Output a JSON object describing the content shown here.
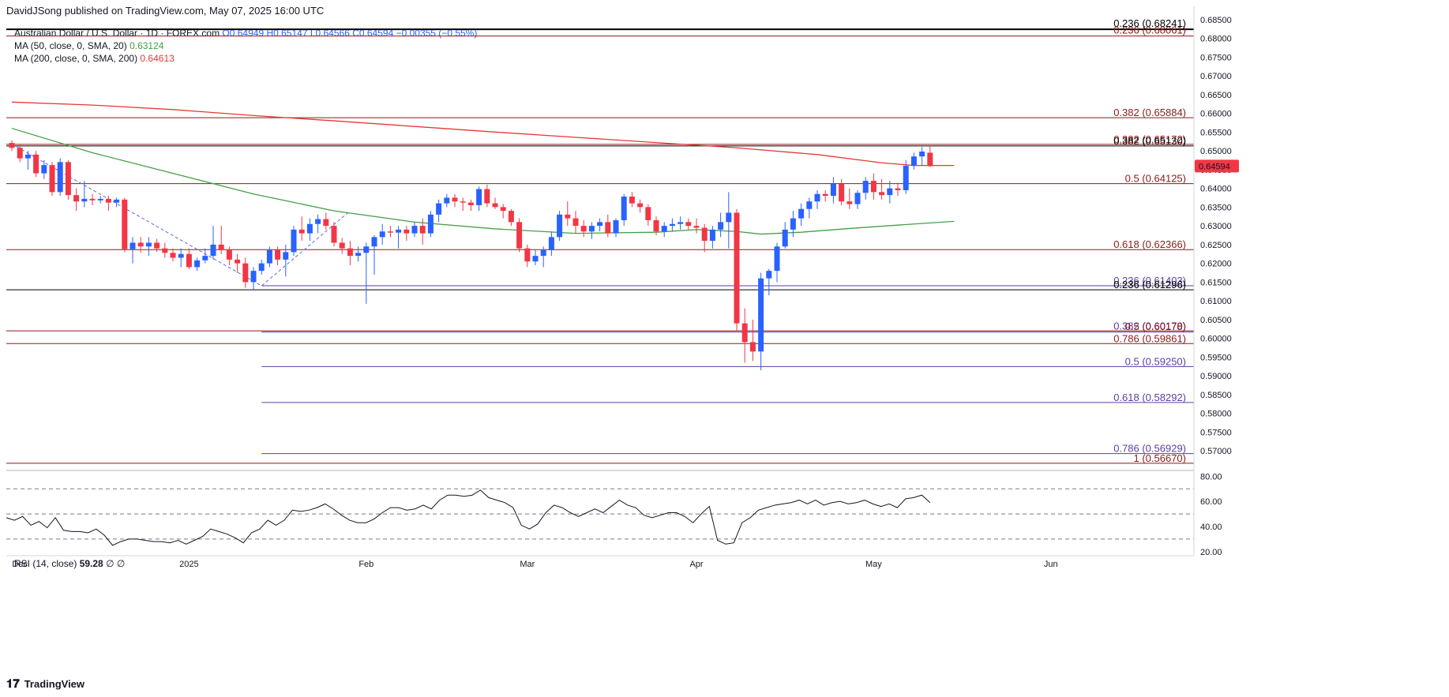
{
  "header": {
    "publisher": "DavidJSong published on TradingView.com, May 07, 2025 16:00 UTC"
  },
  "legend": {
    "symbol": "Australian Dollar / U.S. Dollar · 1D · FOREX.com",
    "ohlc": "O0.64949 H0.65147 L0.64566 C0.64594 −0.00355 (−0.55%)",
    "ma50_label": "MA (50, close, 0, SMA, 20)",
    "ma50_value": "0.63124",
    "ma200_label": "MA (200, close, 0, SMA, 200)",
    "ma200_value": "0.64613"
  },
  "rsi_legend": {
    "label": "RSI (14, close)",
    "value": "59.28",
    "extra": "∅ ∅"
  },
  "footer": {
    "brand": "TradingView",
    "logo": "tv-logo-icon"
  },
  "colors": {
    "up": "#2962ff",
    "down": "#f23645",
    "ma50": "#43a047",
    "ma200": "#e53935",
    "fib_red": "#8b1a1a",
    "fib_purple": "#5b3fa0",
    "grid": "#e0e3eb",
    "last_price_bg": "#f23645"
  },
  "chart_data": [
    {
      "type": "candlestick",
      "title": "Australian Dollar / U.S. Dollar · 1D · FOREX.com",
      "ylim": [
        0.565,
        0.686
      ],
      "y_ticks": [
        "0.68500",
        "0.68000",
        "0.67500",
        "0.67000",
        "0.66500",
        "0.66000",
        "0.65500",
        "0.65000",
        "0.64500",
        "0.64000",
        "0.63500",
        "0.63000",
        "0.62500",
        "0.62000",
        "0.61500",
        "0.61000",
        "0.60500",
        "0.60000",
        "0.59500",
        "0.59000",
        "0.58500",
        "0.58000",
        "0.57500",
        "0.57000"
      ],
      "x_ticks": [
        {
          "label": "Dec",
          "index": 1
        },
        {
          "label": "2025",
          "index": 22
        },
        {
          "label": "Feb",
          "index": 44
        },
        {
          "label": "Mar",
          "index": 64
        },
        {
          "label": "Apr",
          "index": 85
        },
        {
          "label": "May",
          "index": 107
        },
        {
          "label": "Jun",
          "index": 129
        }
      ],
      "last_price": "0.64594",
      "candles": [
        [
          0.6521,
          0.6528,
          0.65,
          0.6508
        ],
        [
          0.6508,
          0.6519,
          0.647,
          0.648
        ],
        [
          0.648,
          0.65,
          0.645,
          0.649
        ],
        [
          0.649,
          0.65,
          0.643,
          0.644
        ],
        [
          0.644,
          0.6475,
          0.6425,
          0.6462
        ],
        [
          0.6462,
          0.647,
          0.638,
          0.639
        ],
        [
          0.639,
          0.648,
          0.638,
          0.647
        ],
        [
          0.647,
          0.6475,
          0.637,
          0.6382
        ],
        [
          0.6382,
          0.64,
          0.634,
          0.6365
        ],
        [
          0.6365,
          0.642,
          0.635,
          0.6372
        ],
        [
          0.6372,
          0.6385,
          0.6355,
          0.6368
        ],
        [
          0.6368,
          0.638,
          0.636,
          0.6372
        ],
        [
          0.6372,
          0.638,
          0.634,
          0.6362
        ],
        [
          0.6362,
          0.6375,
          0.635,
          0.637
        ],
        [
          0.637,
          0.6375,
          0.623,
          0.6238
        ],
        [
          0.6238,
          0.627,
          0.62,
          0.6255
        ],
        [
          0.6255,
          0.627,
          0.6228,
          0.6245
        ],
        [
          0.6245,
          0.627,
          0.622,
          0.6255
        ],
        [
          0.6255,
          0.6265,
          0.623,
          0.624
        ],
        [
          0.624,
          0.6255,
          0.6215,
          0.6228
        ],
        [
          0.6228,
          0.624,
          0.6205,
          0.6215
        ],
        [
          0.6215,
          0.624,
          0.619,
          0.6225
        ],
        [
          0.6225,
          0.624,
          0.6185,
          0.619
        ],
        [
          0.619,
          0.6215,
          0.618,
          0.6208
        ],
        [
          0.6208,
          0.624,
          0.62,
          0.622
        ],
        [
          0.622,
          0.63,
          0.621,
          0.625
        ],
        [
          0.625,
          0.63,
          0.6225,
          0.6235
        ],
        [
          0.6235,
          0.6245,
          0.6195,
          0.621
        ],
        [
          0.621,
          0.6225,
          0.6175,
          0.62
        ],
        [
          0.62,
          0.6215,
          0.6135,
          0.615
        ],
        [
          0.615,
          0.619,
          0.613,
          0.618
        ],
        [
          0.618,
          0.621,
          0.617,
          0.62
        ],
        [
          0.62,
          0.6245,
          0.619,
          0.6235
        ],
        [
          0.6235,
          0.6245,
          0.6195,
          0.621
        ],
        [
          0.621,
          0.625,
          0.6165,
          0.623
        ],
        [
          0.623,
          0.63,
          0.622,
          0.629
        ],
        [
          0.629,
          0.6325,
          0.626,
          0.628
        ],
        [
          0.628,
          0.632,
          0.626,
          0.6305
        ],
        [
          0.6305,
          0.633,
          0.628,
          0.6318
        ],
        [
          0.6318,
          0.6335,
          0.629,
          0.63
        ],
        [
          0.63,
          0.631,
          0.6245,
          0.6255
        ],
        [
          0.6255,
          0.6268,
          0.6225,
          0.624
        ],
        [
          0.624,
          0.626,
          0.6195,
          0.622
        ],
        [
          0.622,
          0.6245,
          0.6205,
          0.6228
        ],
        [
          0.6228,
          0.6255,
          0.6092,
          0.6245
        ],
        [
          0.6245,
          0.6275,
          0.617,
          0.627
        ],
        [
          0.627,
          0.6305,
          0.625,
          0.6285
        ],
        [
          0.6285,
          0.63,
          0.627,
          0.6282
        ],
        [
          0.6282,
          0.63,
          0.624,
          0.629
        ],
        [
          0.629,
          0.63,
          0.626,
          0.628
        ],
        [
          0.628,
          0.631,
          0.627,
          0.63
        ],
        [
          0.63,
          0.632,
          0.625,
          0.628
        ],
        [
          0.628,
          0.634,
          0.627,
          0.633
        ],
        [
          0.633,
          0.637,
          0.631,
          0.636
        ],
        [
          0.636,
          0.6385,
          0.635,
          0.6375
        ],
        [
          0.6375,
          0.6385,
          0.635,
          0.6365
        ],
        [
          0.6365,
          0.6375,
          0.634,
          0.6362
        ],
        [
          0.6362,
          0.637,
          0.634,
          0.6355
        ],
        [
          0.6355,
          0.6405,
          0.634,
          0.6398
        ],
        [
          0.6398,
          0.641,
          0.635,
          0.636
        ],
        [
          0.636,
          0.6375,
          0.6345,
          0.635
        ],
        [
          0.635,
          0.6358,
          0.632,
          0.634
        ],
        [
          0.634,
          0.6345,
          0.63,
          0.631
        ],
        [
          0.631,
          0.632,
          0.623,
          0.624
        ],
        [
          0.624,
          0.625,
          0.619,
          0.6205
        ],
        [
          0.6205,
          0.6235,
          0.6195,
          0.622
        ],
        [
          0.622,
          0.6245,
          0.619,
          0.6235
        ],
        [
          0.6235,
          0.6285,
          0.622,
          0.627
        ],
        [
          0.627,
          0.634,
          0.626,
          0.633
        ],
        [
          0.633,
          0.6365,
          0.63,
          0.632
        ],
        [
          0.632,
          0.634,
          0.628,
          0.63
        ],
        [
          0.63,
          0.6315,
          0.627,
          0.6285
        ],
        [
          0.6285,
          0.631,
          0.6265,
          0.63
        ],
        [
          0.63,
          0.632,
          0.6285,
          0.631
        ],
        [
          0.631,
          0.633,
          0.627,
          0.628
        ],
        [
          0.628,
          0.632,
          0.627,
          0.6315
        ],
        [
          0.6315,
          0.6385,
          0.63,
          0.6378
        ],
        [
          0.6378,
          0.639,
          0.635,
          0.636
        ],
        [
          0.636,
          0.637,
          0.6335,
          0.635
        ],
        [
          0.635,
          0.6358,
          0.63,
          0.6315
        ],
        [
          0.6315,
          0.6325,
          0.6275,
          0.6285
        ],
        [
          0.6285,
          0.631,
          0.627,
          0.63
        ],
        [
          0.63,
          0.632,
          0.6285,
          0.6305
        ],
        [
          0.6305,
          0.6325,
          0.629,
          0.631
        ],
        [
          0.631,
          0.632,
          0.629,
          0.63
        ],
        [
          0.63,
          0.632,
          0.628,
          0.6295
        ],
        [
          0.6295,
          0.6305,
          0.623,
          0.626
        ],
        [
          0.626,
          0.63,
          0.624,
          0.629
        ],
        [
          0.629,
          0.6335,
          0.627,
          0.631
        ],
        [
          0.631,
          0.639,
          0.624,
          0.6335
        ],
        [
          0.6335,
          0.6345,
          0.602,
          0.604
        ],
        [
          0.604,
          0.608,
          0.5935,
          0.599
        ],
        [
          0.599,
          0.605,
          0.594,
          0.5965
        ],
        [
          0.5965,
          0.6175,
          0.5915,
          0.616
        ],
        [
          0.616,
          0.6185,
          0.6115,
          0.618
        ],
        [
          0.618,
          0.6255,
          0.615,
          0.6245
        ],
        [
          0.6245,
          0.631,
          0.624,
          0.629
        ],
        [
          0.629,
          0.634,
          0.627,
          0.632
        ],
        [
          0.632,
          0.636,
          0.63,
          0.6345
        ],
        [
          0.6345,
          0.6375,
          0.632,
          0.6365
        ],
        [
          0.6365,
          0.6395,
          0.6345,
          0.6385
        ],
        [
          0.6385,
          0.6395,
          0.6365,
          0.638
        ],
        [
          0.638,
          0.643,
          0.636,
          0.6412
        ],
        [
          0.6412,
          0.6425,
          0.6355,
          0.6365
        ],
        [
          0.6365,
          0.64,
          0.6345,
          0.6358
        ],
        [
          0.6358,
          0.6395,
          0.6345,
          0.6388
        ],
        [
          0.6388,
          0.643,
          0.637,
          0.642
        ],
        [
          0.642,
          0.644,
          0.637,
          0.639
        ],
        [
          0.639,
          0.6425,
          0.637,
          0.6382
        ],
        [
          0.6382,
          0.642,
          0.636,
          0.64
        ],
        [
          0.64,
          0.6415,
          0.638,
          0.6395
        ],
        [
          0.6395,
          0.6475,
          0.6385,
          0.646
        ],
        [
          0.646,
          0.6495,
          0.645,
          0.6485
        ],
        [
          0.6485,
          0.651,
          0.646,
          0.6498
        ],
        [
          0.6495,
          0.6515,
          0.6457,
          0.6459
        ]
      ],
      "ma50": [
        [
          0,
          0.656
        ],
        [
          10,
          0.6495
        ],
        [
          20,
          0.644
        ],
        [
          30,
          0.6385
        ],
        [
          40,
          0.634
        ],
        [
          50,
          0.631
        ],
        [
          60,
          0.6292
        ],
        [
          70,
          0.628
        ],
        [
          80,
          0.6283
        ],
        [
          85,
          0.629
        ],
        [
          90,
          0.6285
        ],
        [
          93,
          0.6278
        ],
        [
          98,
          0.6283
        ],
        [
          104,
          0.6293
        ],
        [
          110,
          0.6302
        ],
        [
          117,
          0.6312
        ]
      ],
      "ma200": [
        [
          0,
          0.663
        ],
        [
          10,
          0.6622
        ],
        [
          20,
          0.661
        ],
        [
          30,
          0.6594
        ],
        [
          40,
          0.658
        ],
        [
          50,
          0.6565
        ],
        [
          60,
          0.655
        ],
        [
          70,
          0.6536
        ],
        [
          80,
          0.6522
        ],
        [
          90,
          0.6508
        ],
        [
          100,
          0.649
        ],
        [
          108,
          0.6468
        ],
        [
          112,
          0.6461
        ],
        [
          117,
          0.6461
        ]
      ],
      "trendline": [
        [
          0,
          0.6518
        ],
        [
          31,
          0.614
        ],
        [
          42,
          0.634
        ]
      ],
      "horizontal_lines": [
        {
          "price": 0.6824,
          "color": "#000000",
          "from_index": 0,
          "width": 2
        },
        {
          "price": 0.68061,
          "color": "#8b1a1a",
          "from_index": 0,
          "width": 1
        },
        {
          "price": 0.65884,
          "color": "#8b1a1a",
          "from_index": 0,
          "width": 1
        },
        {
          "price": 0.65172,
          "color": "#8b1a1a",
          "from_index": 0,
          "width": 1
        },
        {
          "price": 0.6513,
          "color": "#000000",
          "from_index": 0,
          "width": 1
        },
        {
          "price": 0.64125,
          "color": "#8b1a1a",
          "from_index": 0,
          "width": 1
        },
        {
          "price": 0.62366,
          "color": "#8b1a1a",
          "from_index": 0,
          "width": 1
        },
        {
          "price": 0.61403,
          "color": "#5b3fa0",
          "from_index": 31,
          "width": 1
        },
        {
          "price": 0.61296,
          "color": "#000000",
          "from_index": 0,
          "width": 1
        },
        {
          "price": 0.602,
          "color": "#8b1a1a",
          "from_index": 0,
          "width": 1
        },
        {
          "price": 0.6017,
          "color": "#5b3fa0",
          "from_index": 31,
          "width": 1
        },
        {
          "price": 0.59861,
          "color": "#8b1a1a",
          "from_index": 0,
          "width": 1
        },
        {
          "price": 0.5925,
          "color": "#5b3fa0",
          "from_index": 31,
          "width": 1
        },
        {
          "price": 0.58292,
          "color": "#5b3fa0",
          "from_index": 31,
          "width": 1
        },
        {
          "price": 0.56929,
          "color": "#5b3fa0",
          "from_index": 31,
          "width": 1
        },
        {
          "price": 0.5667,
          "color": "#8b1a1a",
          "from_index": 0,
          "width": 1
        }
      ],
      "fib_labels": [
        {
          "text": "0.236 (0.68241)",
          "price": 0.6826,
          "color": "#000000"
        },
        {
          "text": "0.236 (0.68061)",
          "price": 0.6808,
          "color": "#8b1a1a"
        },
        {
          "text": "0.382 (0.65884)",
          "price": 0.65884,
          "color": "#8b1a1a"
        },
        {
          "text": "0.382 (0.65172)",
          "price": 0.65172,
          "color": "#8b1a1a"
        },
        {
          "text": "0.382 (0.65130)",
          "price": 0.6513,
          "color": "#000000"
        },
        {
          "text": "0.5 (0.64125)",
          "price": 0.64125,
          "color": "#8b1a1a"
        },
        {
          "text": "0.618 (0.62366)",
          "price": 0.62366,
          "color": "#8b1a1a"
        },
        {
          "text": "0.236 (0.61403)",
          "price": 0.61403,
          "color": "#5b3fa0"
        },
        {
          "text": "0.236 (0.61296)",
          "price": 0.61296,
          "color": "#000000"
        },
        {
          "text": "0.382 (0.60170)",
          "price": 0.6019,
          "color": "#5b3fa0"
        },
        {
          "text": "0.5 (0.60178)",
          "price": 0.60178,
          "color": "#8b1a1a"
        },
        {
          "text": "0.786 (0.59861)",
          "price": 0.59861,
          "color": "#8b1a1a"
        },
        {
          "text": "0.5 (0.59250)",
          "price": 0.5925,
          "color": "#5b3fa0"
        },
        {
          "text": "0.618 (0.58292)",
          "price": 0.58292,
          "color": "#5b3fa0"
        },
        {
          "text": "0.786 (0.56929)",
          "price": 0.56929,
          "color": "#5b3fa0"
        },
        {
          "text": "1 (0.56670)",
          "price": 0.5667,
          "color": "#8b1a1a"
        }
      ]
    },
    {
      "type": "line",
      "title": "RSI (14, close)",
      "ylim": [
        18,
        84
      ],
      "y_ticks": [
        "80.00",
        "60.00",
        "40.00",
        "20.00"
      ],
      "levels": [
        70,
        50,
        30
      ],
      "values": [
        47,
        45,
        48,
        41,
        44,
        39,
        47,
        37,
        36,
        36,
        35,
        38,
        33,
        25,
        28,
        30,
        30,
        29,
        28,
        28,
        27,
        29,
        26,
        29,
        32,
        38,
        36,
        34,
        31,
        27,
        35,
        38,
        45,
        41,
        45,
        53,
        52,
        53,
        55,
        58,
        54,
        49,
        45,
        43,
        43,
        46,
        51,
        55,
        55,
        53,
        54,
        57,
        54,
        61,
        65,
        65,
        64,
        65,
        69,
        63,
        61,
        59,
        55,
        41,
        38,
        42,
        51,
        57,
        55,
        51,
        48,
        51,
        54,
        51,
        56,
        61,
        57,
        55,
        49,
        47,
        49,
        51,
        51,
        48,
        43,
        50,
        56,
        29,
        26,
        27,
        43,
        47,
        53,
        55,
        57,
        58,
        59,
        61,
        58,
        61,
        57,
        59,
        60,
        58,
        59,
        61,
        58,
        56,
        58,
        55,
        62,
        63,
        65,
        59
      ]
    }
  ]
}
